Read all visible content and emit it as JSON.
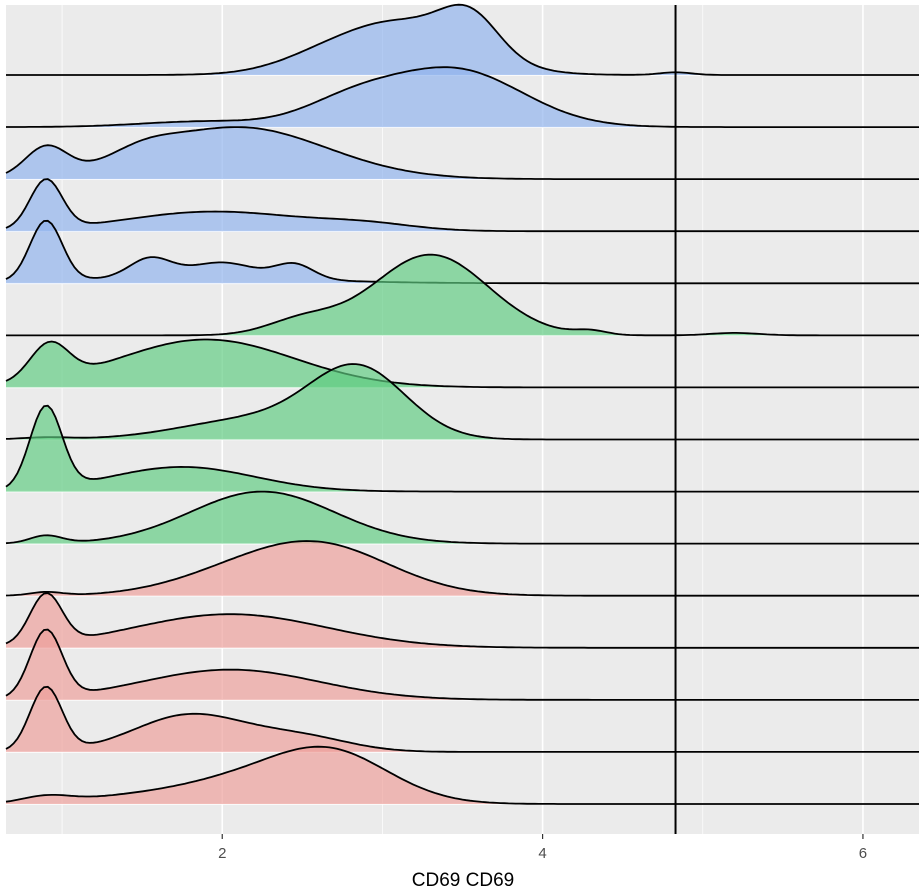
{
  "chart_data": {
    "type": "area",
    "subtype": "ridgeline-density",
    "title": "",
    "xlabel": "CD69 CD69",
    "ylabel": "",
    "xlim": [
      0.65,
      6.35
    ],
    "x_ticks": [
      2,
      4,
      6
    ],
    "x_tick_labels": [
      "2",
      "4",
      "6"
    ],
    "y_tick_labels_visible": false,
    "grid": true,
    "legend": "none",
    "vline_x": 4.83,
    "group_colors": {
      "blue": "#8fb3ee",
      "green": "#5ecb80",
      "red": "#ee9e99"
    },
    "background_color": "#ebebeb",
    "gridline_color": "#ffffff",
    "ridges": [
      {
        "group": "blue",
        "height": 1.35,
        "peaks": [
          [
            3.1,
            0.42,
            1.0
          ],
          [
            3.55,
            0.18,
            0.7
          ],
          [
            2.55,
            0.25,
            0.08
          ],
          [
            4.83,
            0.1,
            0.05
          ]
        ]
      },
      {
        "group": "blue",
        "height": 1.15,
        "peaks": [
          [
            3.45,
            0.42,
            1.0
          ],
          [
            2.8,
            0.3,
            0.38
          ],
          [
            1.9,
            0.4,
            0.1
          ]
        ]
      },
      {
        "group": "blue",
        "height": 1.0,
        "peaks": [
          [
            0.9,
            0.13,
            0.5
          ],
          [
            2.1,
            0.55,
            0.9
          ],
          [
            1.5,
            0.2,
            0.18
          ]
        ]
      },
      {
        "group": "blue",
        "height": 1.0,
        "peaks": [
          [
            0.9,
            0.1,
            1.0
          ],
          [
            1.95,
            0.55,
            0.4
          ],
          [
            2.9,
            0.3,
            0.12
          ]
        ]
      },
      {
        "group": "blue",
        "height": 1.2,
        "peaks": [
          [
            0.9,
            0.1,
            1.0
          ],
          [
            1.55,
            0.13,
            0.32
          ],
          [
            2.0,
            0.2,
            0.25
          ],
          [
            2.45,
            0.12,
            0.25
          ],
          [
            1.8,
            0.7,
            0.1
          ]
        ]
      },
      {
        "group": "green",
        "height": 1.55,
        "peaks": [
          [
            3.3,
            0.36,
            1.0
          ],
          [
            2.5,
            0.22,
            0.18
          ],
          [
            4.3,
            0.1,
            0.05
          ],
          [
            5.2,
            0.15,
            0.03
          ]
        ]
      },
      {
        "group": "green",
        "height": 0.92,
        "peaks": [
          [
            0.92,
            0.12,
            0.75
          ],
          [
            1.9,
            0.55,
            1.0
          ]
        ]
      },
      {
        "group": "green",
        "height": 1.45,
        "peaks": [
          [
            2.85,
            0.3,
            1.0
          ],
          [
            2.2,
            0.45,
            0.3
          ],
          [
            0.9,
            0.15,
            0.03
          ]
        ]
      },
      {
        "group": "green",
        "height": 1.65,
        "peaks": [
          [
            0.9,
            0.1,
            1.0
          ],
          [
            1.75,
            0.45,
            0.3
          ]
        ]
      },
      {
        "group": "green",
        "height": 1.0,
        "peaks": [
          [
            2.25,
            0.45,
            1.0
          ],
          [
            0.9,
            0.1,
            0.15
          ]
        ]
      },
      {
        "group": "red",
        "height": 1.05,
        "peaks": [
          [
            2.6,
            0.45,
            1.0
          ],
          [
            2.0,
            0.4,
            0.25
          ],
          [
            0.9,
            0.1,
            0.07
          ]
        ]
      },
      {
        "group": "red",
        "height": 1.05,
        "peaks": [
          [
            0.9,
            0.1,
            1.0
          ],
          [
            2.05,
            0.6,
            0.68
          ]
        ]
      },
      {
        "group": "red",
        "height": 1.35,
        "peaks": [
          [
            0.9,
            0.1,
            1.0
          ],
          [
            2.05,
            0.55,
            0.45
          ]
        ]
      },
      {
        "group": "red",
        "height": 1.25,
        "peaks": [
          [
            0.9,
            0.1,
            1.0
          ],
          [
            1.8,
            0.35,
            0.58
          ],
          [
            2.5,
            0.3,
            0.22
          ]
        ]
      },
      {
        "group": "red",
        "height": 1.1,
        "peaks": [
          [
            2.65,
            0.38,
            1.0
          ],
          [
            2.0,
            0.35,
            0.3
          ],
          [
            1.4,
            0.35,
            0.12
          ],
          [
            0.9,
            0.15,
            0.12
          ]
        ]
      }
    ]
  }
}
